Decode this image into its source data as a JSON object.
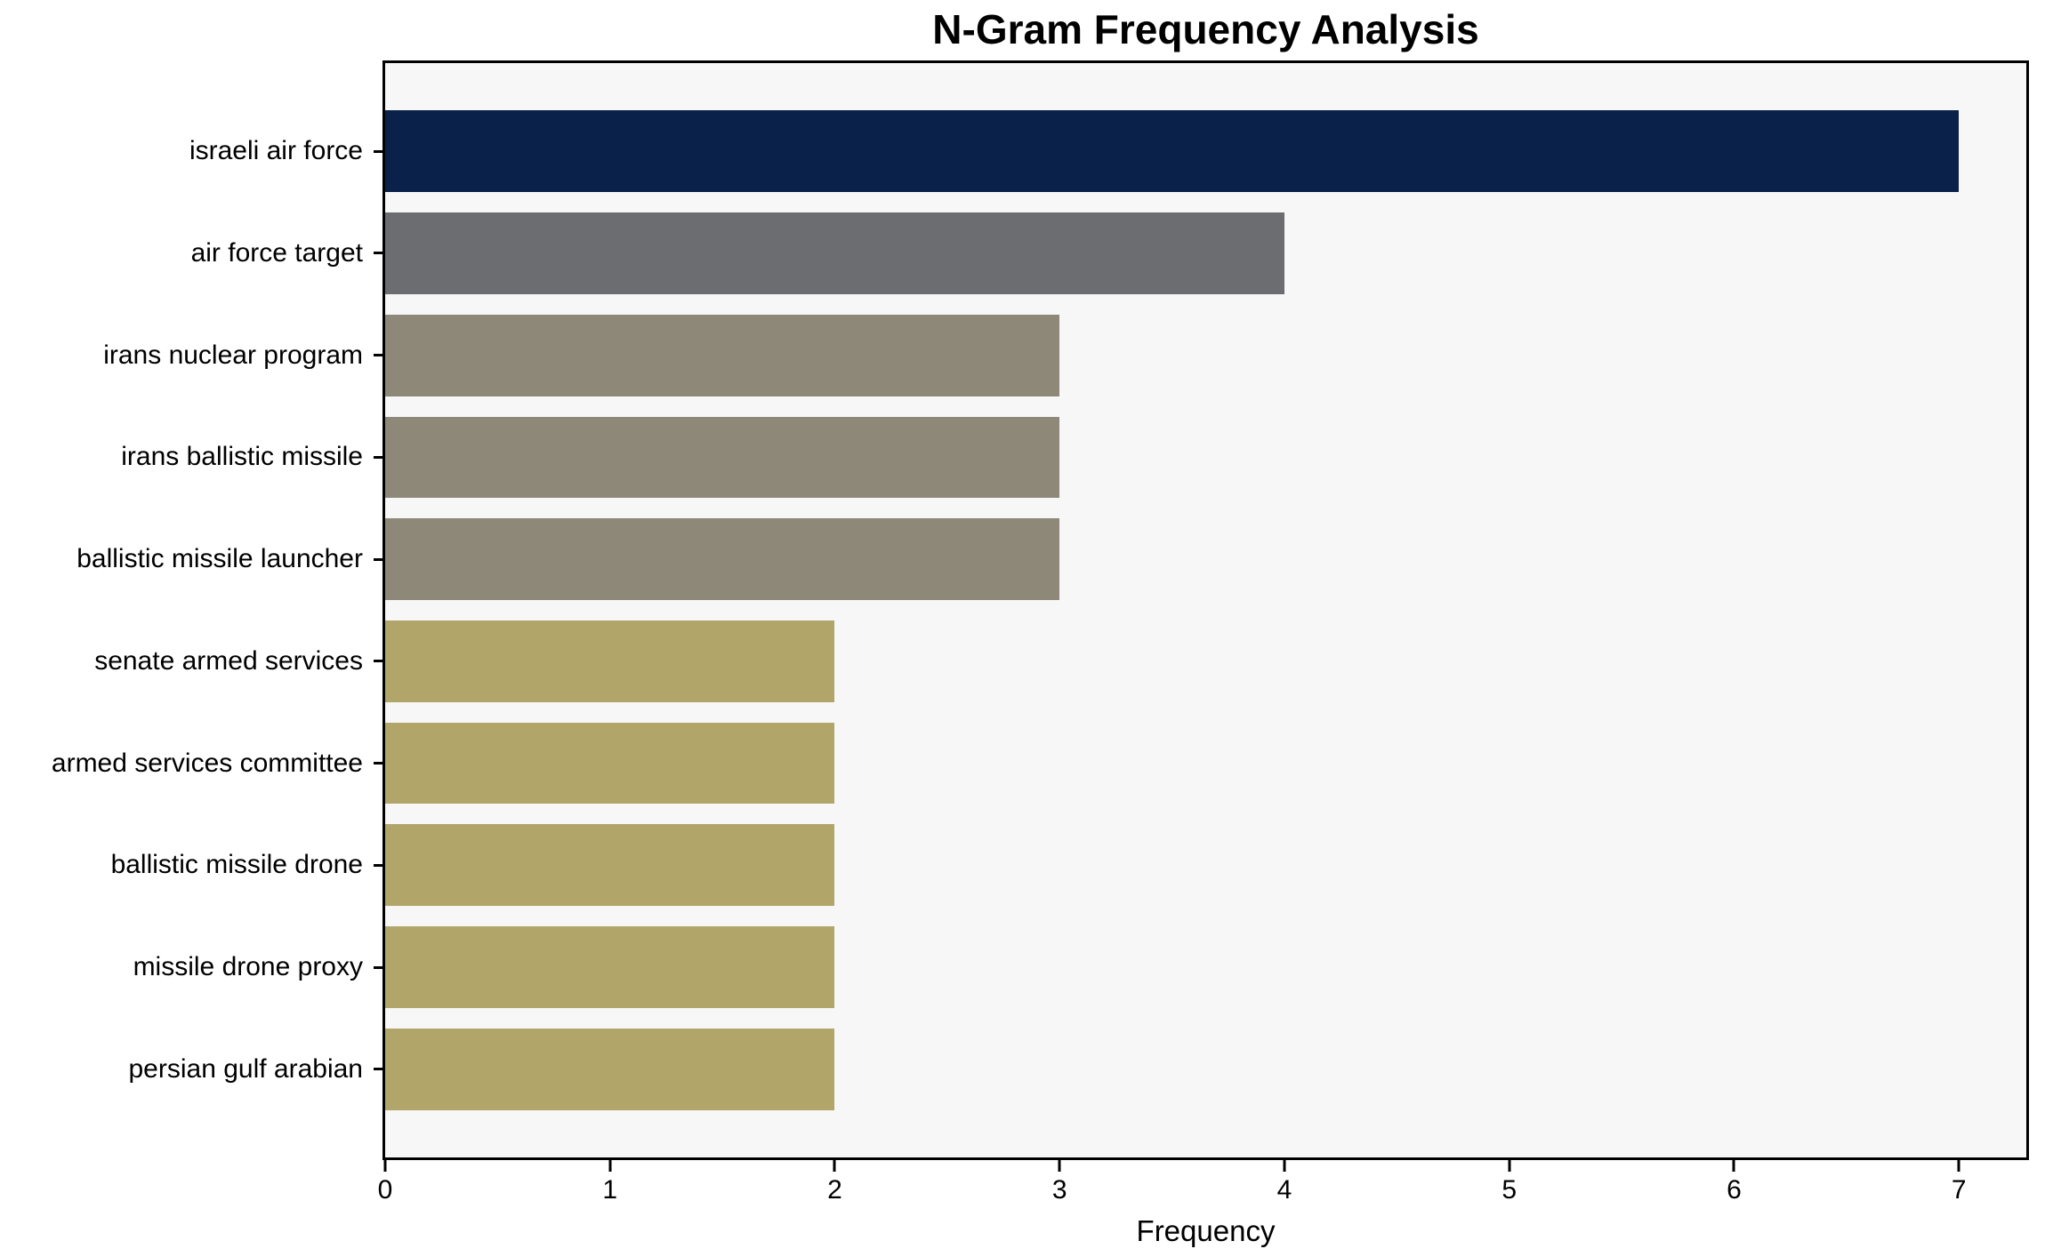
{
  "page": {
    "title": "N-Gram Frequency Analysis"
  },
  "chart_data": {
    "type": "bar",
    "orientation": "horizontal",
    "title": "N-Gram Frequency Analysis",
    "xlabel": "Frequency",
    "ylabel": "",
    "categories": [
      "israeli air force",
      "air force target",
      "irans nuclear program",
      "irans ballistic missile",
      "ballistic missile launcher",
      "senate armed services",
      "armed services committee",
      "ballistic missile drone",
      "missile drone proxy",
      "persian gulf arabian"
    ],
    "values": [
      7,
      4,
      3,
      3,
      3,
      2,
      2,
      2,
      2,
      2
    ],
    "bar_colors": [
      "#0a2149",
      "#6c6d71",
      "#8e8878",
      "#8e8878",
      "#8e8878",
      "#b1a569",
      "#b1a569",
      "#b1a569",
      "#b1a569",
      "#b1a569"
    ],
    "xticks": [
      "0",
      "1",
      "2",
      "3",
      "4",
      "5",
      "6",
      "7"
    ],
    "xlim": [
      0,
      7.3
    ],
    "grid": false,
    "legend": "none",
    "plot_background": "#f7f7f8",
    "figure_background": "#ffffff",
    "spine_color": "#000000",
    "text_color": "#000000"
  }
}
